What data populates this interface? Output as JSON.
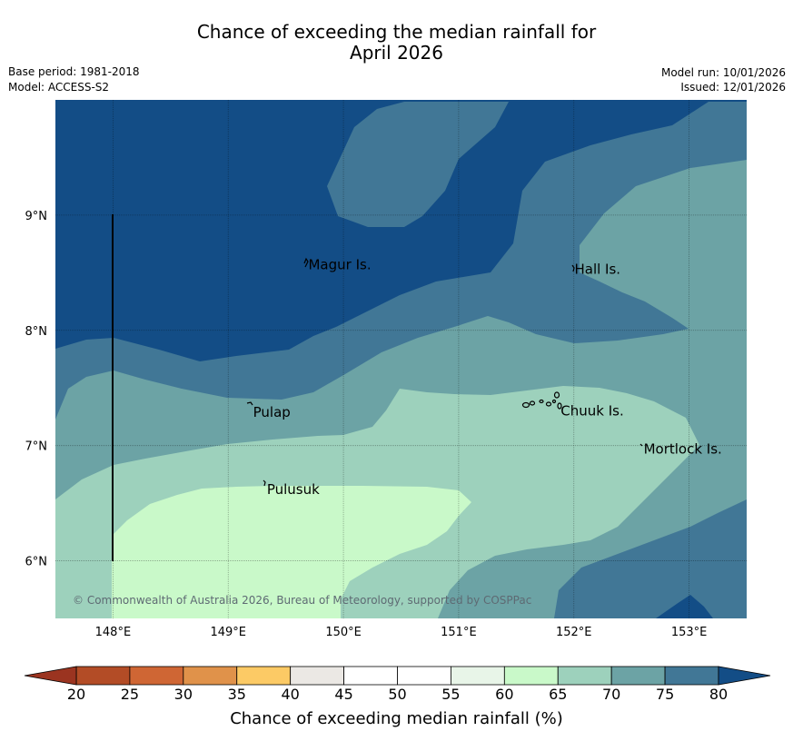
{
  "title": {
    "line1": "Chance of exceeding the median rainfall for",
    "line2": "April 2026"
  },
  "meta": {
    "base_period": "Base period: 1981-2018",
    "model": "Model: ACCESS-S2",
    "model_run": "Model run: 10/01/2026",
    "issued": "Issued: 12/01/2026"
  },
  "map": {
    "lon_range": [
      147.5,
      153.5
    ],
    "lat_range": [
      5.5,
      10.0
    ],
    "lat_ticks": [
      "9°N",
      "8°N",
      "7°N",
      "6°N"
    ],
    "lon_ticks": [
      "148°E",
      "149°E",
      "150°E",
      "151°E",
      "152°E",
      "153°E"
    ],
    "places": [
      {
        "name": "Magur Is.",
        "lon": 149.68,
        "lat": 8.57
      },
      {
        "name": "Hall Is.",
        "lon": 151.99,
        "lat": 8.53
      },
      {
        "name": "Pulap",
        "lon": 149.2,
        "lat": 7.29
      },
      {
        "name": "Chuuk Is.",
        "lon": 151.87,
        "lat": 7.3
      },
      {
        "name": "Mortlock Is.",
        "lon": 152.59,
        "lat": 6.97
      },
      {
        "name": "Pulusuk",
        "lon": 149.32,
        "lat": 6.62
      }
    ],
    "copyright": "© Commonwealth of Australia 2026, Bureau of Meteorology, supported by COSPPac",
    "colors": {
      "c80": "#134d86",
      "c75": "#417796",
      "c70": "#6ca3a5",
      "c65": "#9dd1bc",
      "c60": "#c9f9c9"
    }
  },
  "colorbar": {
    "ticks": [
      "20",
      "25",
      "30",
      "35",
      "40",
      "45",
      "50",
      "55",
      "60",
      "65",
      "70",
      "75",
      "80"
    ],
    "colors": [
      "#b34c26",
      "#cf6634",
      "#e0924a",
      "#fcca65",
      "#ebe8e4",
      "#ffffff",
      "#ffffff",
      "#e8f5e8",
      "#c9f9c9",
      "#9dd1bc",
      "#6ca3a5",
      "#417796"
    ],
    "under_color": "#9b3420",
    "over_color": "#134d86",
    "label": "Chance of exceeding median rainfall (%)"
  }
}
